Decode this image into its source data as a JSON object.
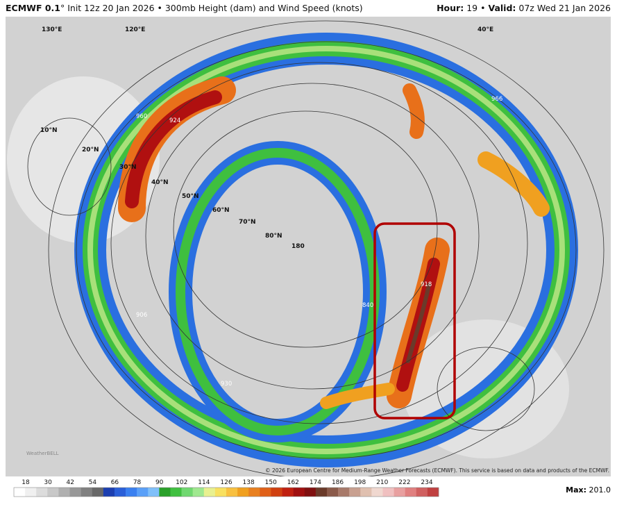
{
  "header": {
    "model": "ECMWF 0.1",
    "title": "° Init 12z 20 Jan 2026 • 300mb Height (dam) and Wind Speed (knots)",
    "hour_label": "Hour:",
    "hour_value": "19 •",
    "valid_label": "Valid:",
    "valid_value": "07z Wed 21 Jan 2026"
  },
  "map": {
    "labels": [
      "10°N",
      "20°N",
      "30°N",
      "40°N",
      "50°N",
      "60°N",
      "70°N",
      "80°N",
      "180",
      "40°E",
      "120°E",
      "130°E"
    ],
    "contour_labels": [
      "924",
      "918",
      "840",
      "906",
      "960",
      "930",
      "966"
    ]
  },
  "logo": "WeatherBELL",
  "copyright": "© 2026 European Centre for Medium-Range Weather Forecasts (ECMWF). This service is based on data and products of the ECMWF.",
  "colorbar": {
    "ticks": [
      18,
      30,
      42,
      54,
      66,
      78,
      90,
      102,
      114,
      126,
      138,
      150,
      162,
      174,
      186,
      198,
      210,
      222,
      234
    ],
    "colors": [
      "#ffffff",
      "#f0f0f0",
      "#dcdcdc",
      "#c8c8c8",
      "#b0b0b0",
      "#989898",
      "#808080",
      "#686868",
      "#1c3fb0",
      "#2a5fd8",
      "#3a80f0",
      "#5aa0f8",
      "#80c0fa",
      "#2aa02a",
      "#40c040",
      "#70d870",
      "#a0e890",
      "#e8f090",
      "#f8e060",
      "#f8c040",
      "#f0a020",
      "#e88020",
      "#e06018",
      "#d04010",
      "#c02010",
      "#a01010",
      "#801010",
      "#6a3a2a",
      "#8a5a4a",
      "#a87a6a",
      "#c8a090",
      "#e0c0b0",
      "#f0d8d0",
      "#f0c0c0",
      "#e8a0a0",
      "#e08080",
      "#d06060",
      "#c04040"
    ]
  },
  "max": {
    "label": "Max:",
    "value": "201.0"
  }
}
